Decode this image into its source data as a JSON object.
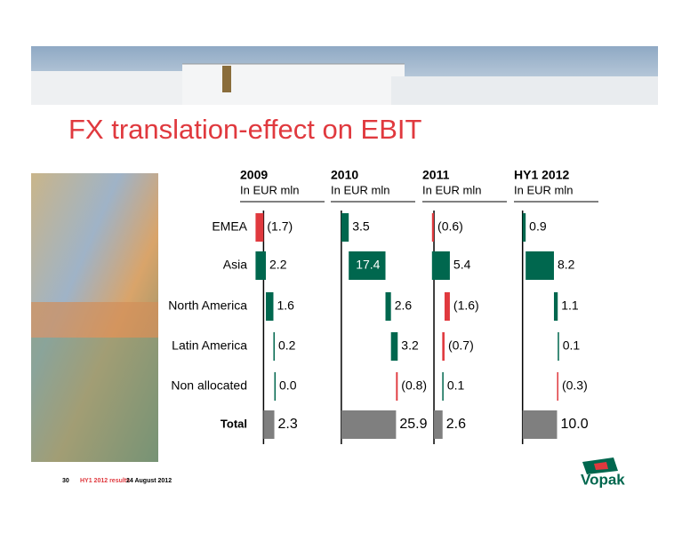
{
  "title": "FX translation-effect on EBIT",
  "footer": {
    "page": "30",
    "deck": "HY1 2012 results",
    "date": "24 August 2012",
    "logo": "Vopak"
  },
  "chart_data": [
    {
      "type": "waterfall",
      "title": "2009",
      "subtitle": "In EUR mln",
      "categories": [
        "EMEA",
        "Asia",
        "North America",
        "Latin America",
        "Non allocated"
      ],
      "total_category": "Total",
      "values": [
        -1.7,
        2.2,
        1.6,
        0.2,
        0.0
      ],
      "value_labels": [
        "(1.7)",
        "2.2",
        "1.6",
        "0.2",
        "0.0"
      ],
      "total": 2.3,
      "total_label": "2.3",
      "xlim": [
        -5,
        13
      ],
      "colors": {
        "positive": "#00674e",
        "negative": "#e0393e",
        "total": "#7f7f7f"
      }
    },
    {
      "type": "waterfall",
      "title": "2010",
      "subtitle": "In EUR mln",
      "values": [
        3.5,
        17.4,
        2.6,
        3.2,
        -0.8
      ],
      "value_labels": [
        "3.5",
        "17.4",
        "2.6",
        "3.2",
        "(0.8)"
      ],
      "total": 25.9,
      "total_label": "25.9",
      "xlim": [
        -5,
        35
      ]
    },
    {
      "type": "waterfall",
      "title": "2011",
      "subtitle": "In EUR mln",
      "values": [
        -0.6,
        5.4,
        -1.6,
        -0.7,
        0.1
      ],
      "value_labels": [
        "(0.6)",
        "5.4",
        "(1.6)",
        "(0.7)",
        "0.1"
      ],
      "total": 2.6,
      "total_label": "2.6",
      "xlim": [
        -3.5,
        22
      ]
    },
    {
      "type": "waterfall",
      "title": "HY1 2012",
      "subtitle": "In EUR mln",
      "values": [
        0.9,
        8.2,
        1.1,
        0.1,
        -0.3
      ],
      "value_labels": [
        "0.9",
        "8.2",
        "1.1",
        "0.1",
        "(0.3)"
      ],
      "total": 10.0,
      "total_label": "10.0",
      "xlim": [
        -2.5,
        22
      ]
    }
  ]
}
